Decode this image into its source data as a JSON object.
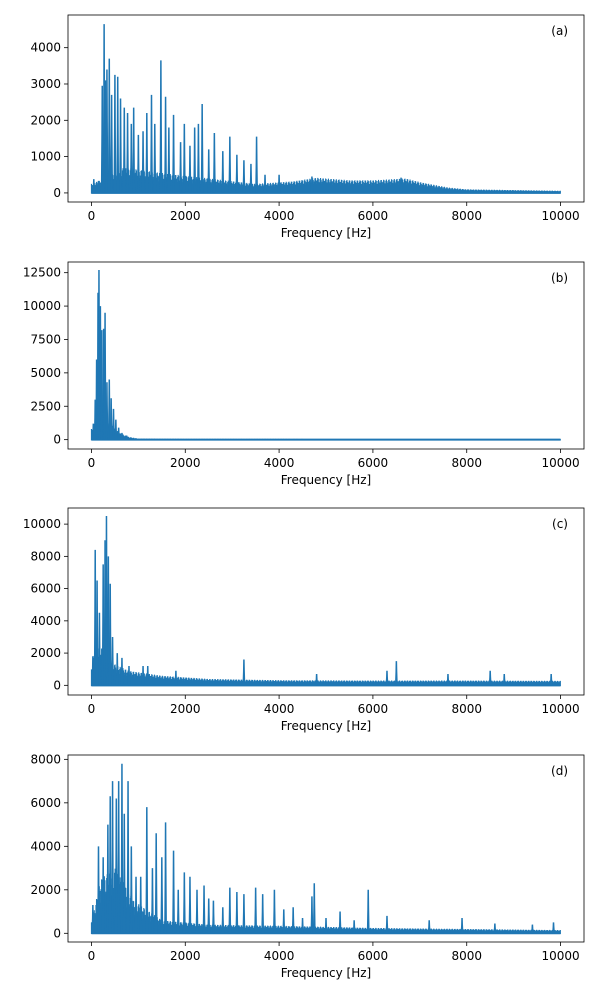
{
  "chart_data": [
    {
      "type": "line",
      "panel_label": "(a)",
      "xlabel": "Frequency [Hz]",
      "ylabel": "",
      "xlim": [
        -500,
        10500
      ],
      "ylim": [
        -250,
        4900
      ],
      "xticks": [
        0,
        2000,
        4000,
        6000,
        8000,
        10000
      ],
      "yticks": [
        0,
        1000,
        2000,
        3000,
        4000
      ],
      "series": [
        {
          "color": "#1f77b4",
          "noise_floor": [
            [
              0,
              250
            ],
            [
              200,
              350
            ],
            [
              700,
              700
            ],
            [
              1500,
              550
            ],
            [
              2500,
              400
            ],
            [
              3500,
              250
            ],
            [
              4300,
              320
            ],
            [
              4800,
              420
            ],
            [
              5500,
              350
            ],
            [
              6000,
              350
            ],
            [
              6700,
              400
            ],
            [
              7000,
              300
            ],
            [
              7600,
              150
            ],
            [
              8000,
              100
            ],
            [
              10000,
              60
            ]
          ],
          "peaks": [
            [
              50,
              380
            ],
            [
              150,
              330
            ],
            [
              230,
              2950
            ],
            [
              270,
              4650
            ],
            [
              300,
              3100
            ],
            [
              330,
              3400
            ],
            [
              380,
              3700
            ],
            [
              430,
              2700
            ],
            [
              500,
              3250
            ],
            [
              560,
              3200
            ],
            [
              620,
              2600
            ],
            [
              700,
              2350
            ],
            [
              770,
              2200
            ],
            [
              850,
              1900
            ],
            [
              900,
              2350
            ],
            [
              1000,
              1600
            ],
            [
              1100,
              1700
            ],
            [
              1180,
              2200
            ],
            [
              1280,
              2700
            ],
            [
              1350,
              1900
            ],
            [
              1480,
              3650
            ],
            [
              1580,
              2650
            ],
            [
              1650,
              1800
            ],
            [
              1750,
              2150
            ],
            [
              1900,
              1400
            ],
            [
              1980,
              1900
            ],
            [
              2100,
              1300
            ],
            [
              2200,
              1800
            ],
            [
              2280,
              1900
            ],
            [
              2360,
              2450
            ],
            [
              2500,
              1200
            ],
            [
              2620,
              1650
            ],
            [
              2800,
              1150
            ],
            [
              2950,
              1550
            ],
            [
              3100,
              1050
            ],
            [
              3250,
              900
            ],
            [
              3400,
              800
            ],
            [
              3520,
              1550
            ],
            [
              3700,
              500
            ],
            [
              4000,
              500
            ],
            [
              4700,
              450
            ],
            [
              6600,
              420
            ]
          ]
        }
      ]
    },
    {
      "type": "line",
      "panel_label": "(b)",
      "xlabel": "Frequency [Hz]",
      "ylabel": "",
      "xlim": [
        -500,
        10500
      ],
      "ylim": [
        -700,
        13300
      ],
      "xticks": [
        0,
        2000,
        4000,
        6000,
        8000,
        10000
      ],
      "yticks": [
        0,
        2500,
        5000,
        7500,
        10000,
        12500
      ],
      "series": [
        {
          "color": "#1f77b4",
          "noise_floor": [
            [
              0,
              800
            ],
            [
              100,
              1500
            ],
            [
              200,
              2000
            ],
            [
              400,
              1200
            ],
            [
              600,
              500
            ],
            [
              800,
              200
            ],
            [
              1000,
              80
            ],
            [
              2000,
              60
            ],
            [
              6000,
              50
            ],
            [
              7000,
              30
            ],
            [
              10000,
              30
            ]
          ],
          "peaks": [
            [
              40,
              1200
            ],
            [
              80,
              3000
            ],
            [
              110,
              6000
            ],
            [
              140,
              11000
            ],
            [
              160,
              12700
            ],
            [
              190,
              10000
            ],
            [
              220,
              8200
            ],
            [
              260,
              8300
            ],
            [
              290,
              9500
            ],
            [
              330,
              4300
            ],
            [
              380,
              4500
            ],
            [
              420,
              3100
            ],
            [
              470,
              2300
            ],
            [
              520,
              1500
            ],
            [
              580,
              900
            ],
            [
              650,
              500
            ],
            [
              750,
              300
            ]
          ]
        }
      ]
    },
    {
      "type": "line",
      "panel_label": "(c)",
      "xlabel": "Frequency [Hz]",
      "ylabel": "",
      "xlim": [
        -500,
        10500
      ],
      "ylim": [
        -600,
        11000
      ],
      "xticks": [
        0,
        2000,
        4000,
        6000,
        8000,
        10000
      ],
      "yticks": [
        0,
        2000,
        4000,
        6000,
        8000,
        10000
      ],
      "series": [
        {
          "color": "#1f77b4",
          "noise_floor": [
            [
              0,
              1000
            ],
            [
              100,
              2500
            ],
            [
              300,
              2200
            ],
            [
              500,
              1300
            ],
            [
              800,
              900
            ],
            [
              1500,
              600
            ],
            [
              2500,
              400
            ],
            [
              4000,
              320
            ],
            [
              6000,
              300
            ],
            [
              8000,
              300
            ],
            [
              10000,
              280
            ]
          ],
          "peaks": [
            [
              30,
              1800
            ],
            [
              80,
              8400
            ],
            [
              120,
              6500
            ],
            [
              170,
              4500
            ],
            [
              250,
              7500
            ],
            [
              290,
              9000
            ],
            [
              320,
              10500
            ],
            [
              360,
              8000
            ],
            [
              400,
              6300
            ],
            [
              450,
              3000
            ],
            [
              550,
              2000
            ],
            [
              650,
              1700
            ],
            [
              800,
              1200
            ],
            [
              1100,
              1200
            ],
            [
              1200,
              1200
            ],
            [
              1800,
              900
            ],
            [
              3250,
              1600
            ],
            [
              4800,
              700
            ],
            [
              6300,
              900
            ],
            [
              6500,
              1500
            ],
            [
              7600,
              700
            ],
            [
              8500,
              900
            ],
            [
              8800,
              700
            ],
            [
              9800,
              700
            ]
          ]
        }
      ]
    },
    {
      "type": "line",
      "panel_label": "(d)",
      "xlabel": "Frequency [Hz]",
      "ylabel": "",
      "xlim": [
        -500,
        10500
      ],
      "ylim": [
        -400,
        8200
      ],
      "xticks": [
        0,
        2000,
        4000,
        6000,
        8000,
        10000
      ],
      "yticks": [
        0,
        2000,
        4000,
        6000,
        8000
      ],
      "series": [
        {
          "color": "#1f77b4",
          "noise_floor": [
            [
              0,
              500
            ],
            [
              200,
              2500
            ],
            [
              500,
              3000
            ],
            [
              900,
              1500
            ],
            [
              1500,
              600
            ],
            [
              2500,
              400
            ],
            [
              4000,
              350
            ],
            [
              6000,
              250
            ],
            [
              8000,
              200
            ],
            [
              10000,
              150
            ]
          ],
          "peaks": [
            [
              30,
              1300
            ],
            [
              150,
              4000
            ],
            [
              250,
              3500
            ],
            [
              350,
              5000
            ],
            [
              400,
              6300
            ],
            [
              450,
              7000
            ],
            [
              530,
              6200
            ],
            [
              580,
              7000
            ],
            [
              650,
              7800
            ],
            [
              700,
              5500
            ],
            [
              780,
              7000
            ],
            [
              850,
              4000
            ],
            [
              950,
              2600
            ],
            [
              1050,
              2600
            ],
            [
              1180,
              5800
            ],
            [
              1300,
              3000
            ],
            [
              1380,
              4600
            ],
            [
              1500,
              3500
            ],
            [
              1580,
              5100
            ],
            [
              1750,
              3800
            ],
            [
              1850,
              2000
            ],
            [
              1980,
              2800
            ],
            [
              2100,
              2600
            ],
            [
              2250,
              2000
            ],
            [
              2400,
              2200
            ],
            [
              2500,
              1600
            ],
            [
              2600,
              1500
            ],
            [
              2800,
              1200
            ],
            [
              2950,
              2100
            ],
            [
              3100,
              1900
            ],
            [
              3250,
              1800
            ],
            [
              3500,
              2100
            ],
            [
              3650,
              1800
            ],
            [
              3900,
              2000
            ],
            [
              4100,
              1100
            ],
            [
              4300,
              1200
            ],
            [
              4500,
              700
            ],
            [
              4700,
              1700
            ],
            [
              4750,
              2300
            ],
            [
              5000,
              700
            ],
            [
              5300,
              1000
            ],
            [
              5600,
              600
            ],
            [
              5900,
              2000
            ],
            [
              6300,
              800
            ],
            [
              7200,
              600
            ],
            [
              7900,
              700
            ],
            [
              8600,
              450
            ],
            [
              9400,
              400
            ],
            [
              9850,
              500
            ]
          ]
        }
      ]
    }
  ]
}
